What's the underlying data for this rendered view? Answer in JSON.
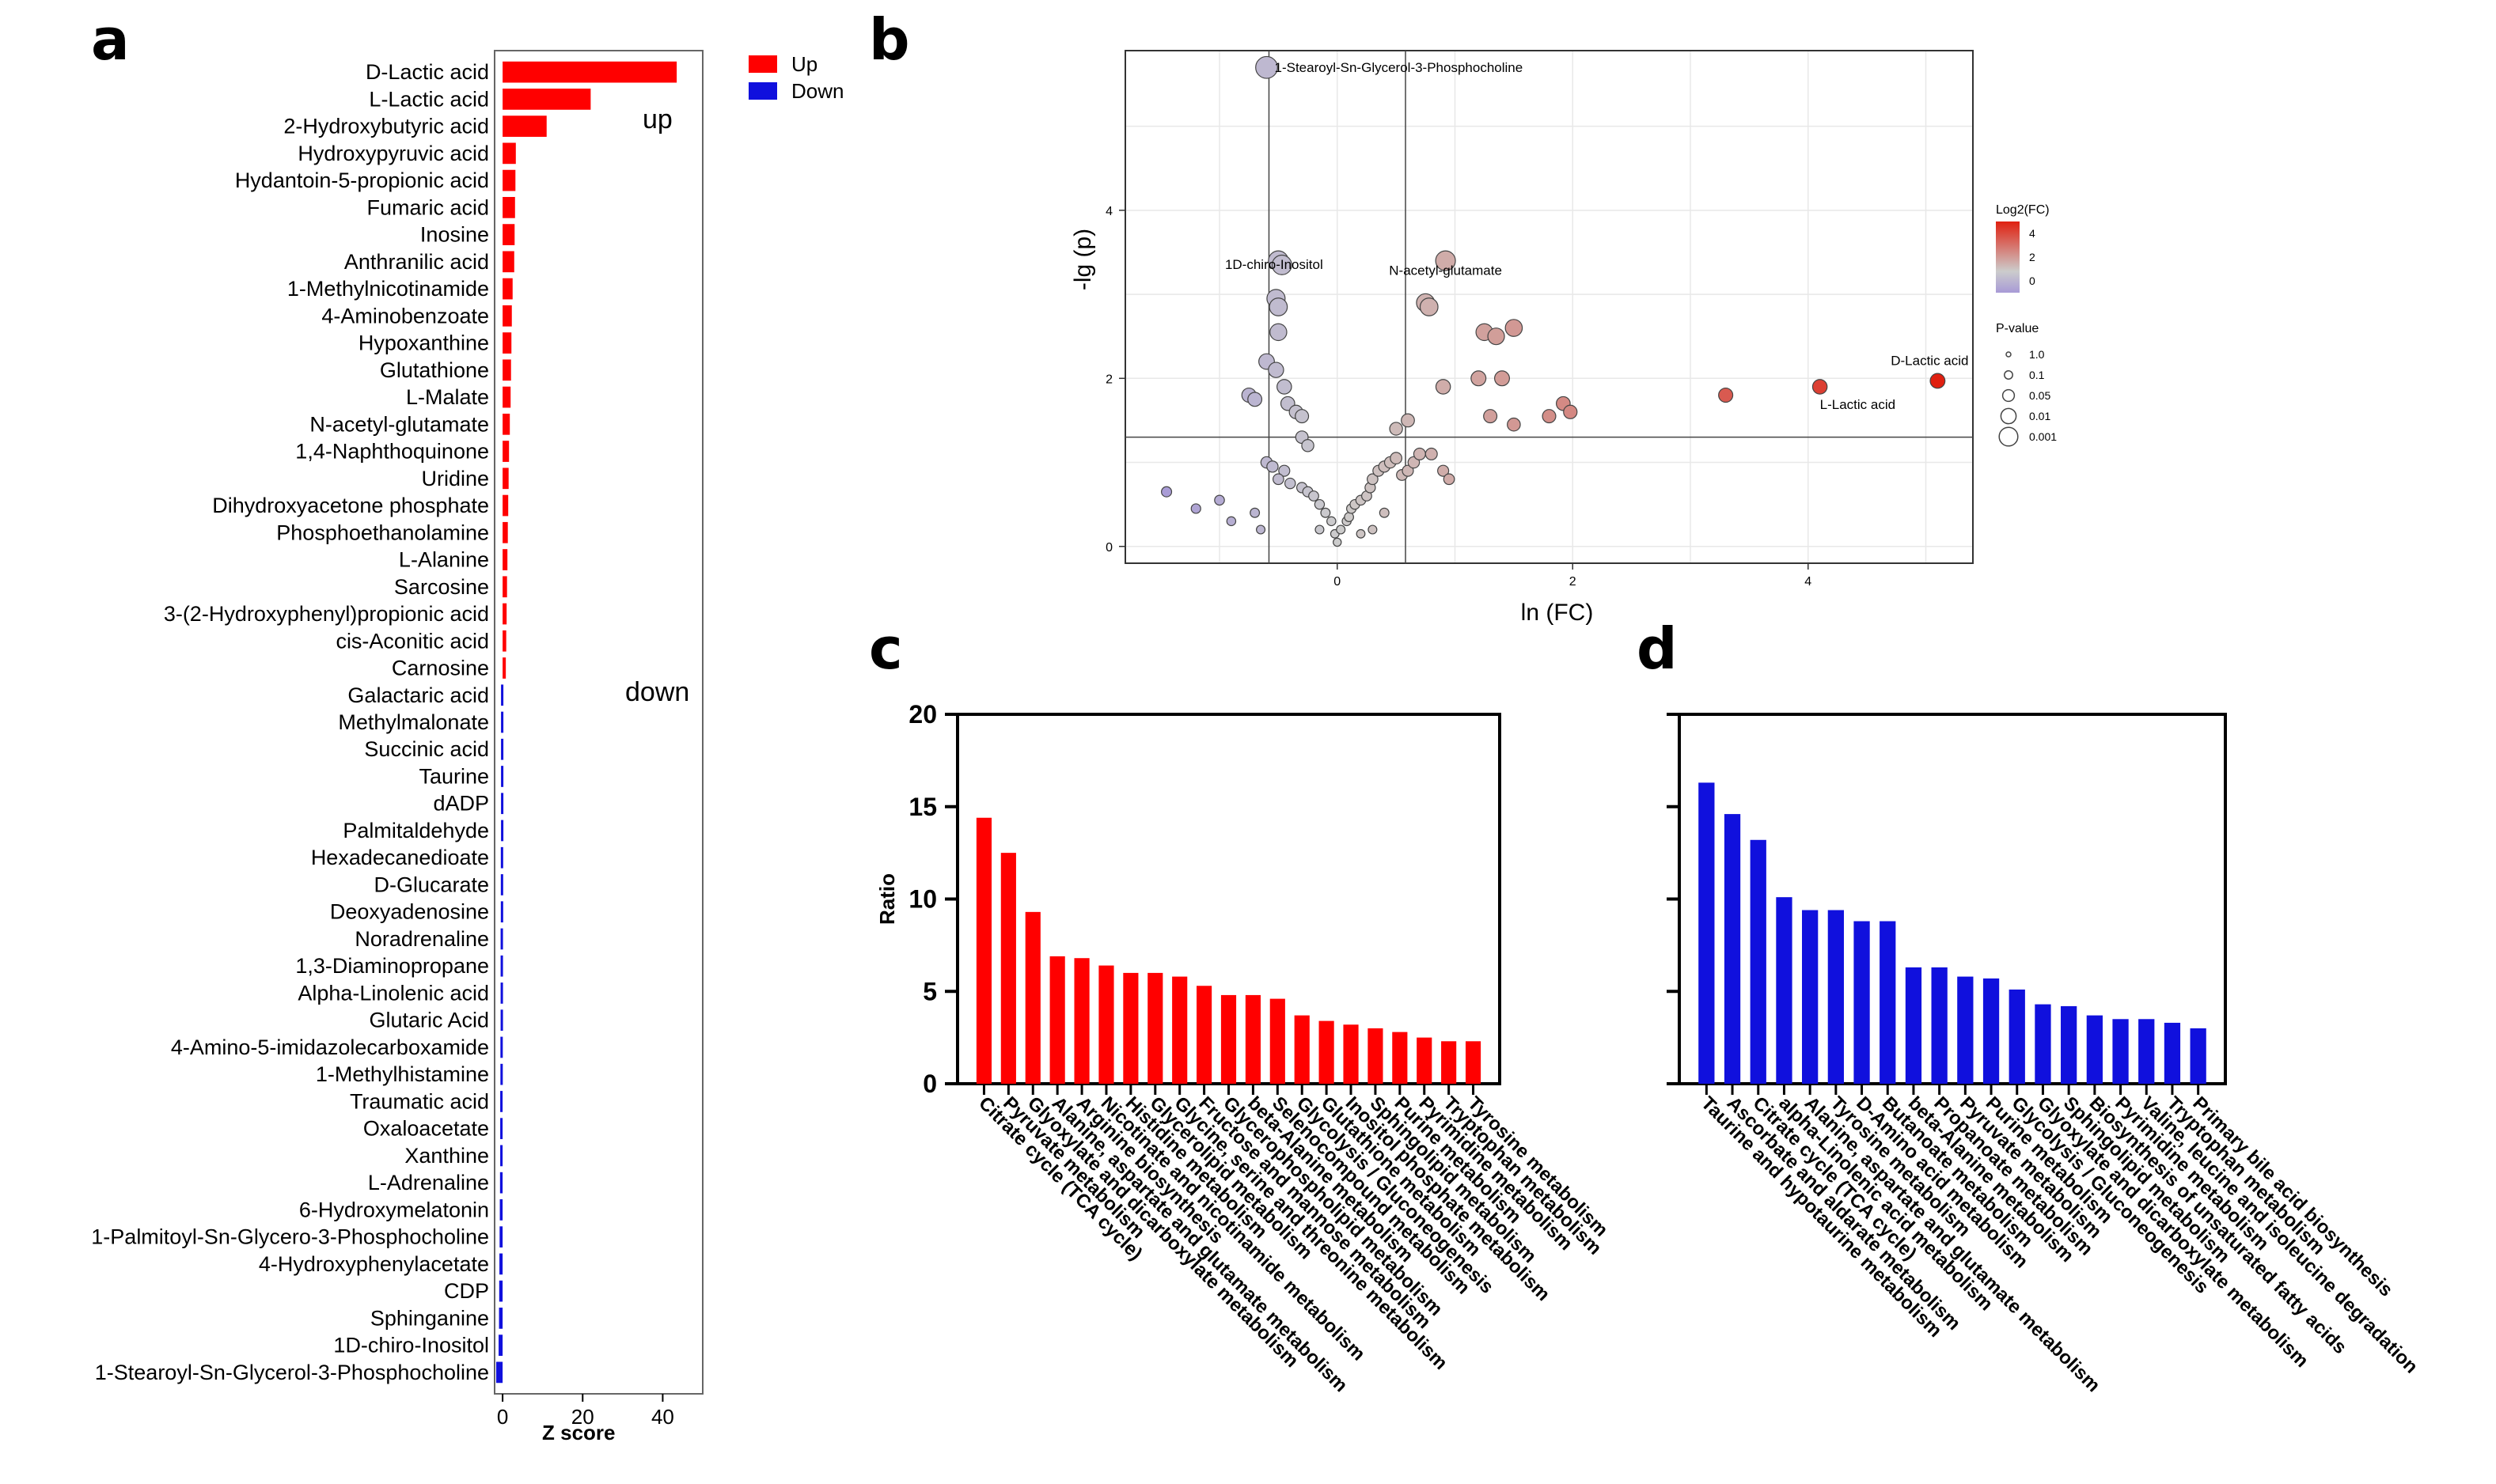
{
  "colors": {
    "up": "#ff0000",
    "down": "#1010dd",
    "volcano_low": "#a89ad6",
    "volcano_mid": "#cccccc",
    "volcano_high": "#e02010",
    "axis": "#000000",
    "grid": "#e8e8e8"
  },
  "chart_data": [
    {
      "panel": "a",
      "type": "bar",
      "orientation": "horizontal",
      "xlabel": "Z score",
      "xlim": [
        -2,
        50
      ],
      "xticks": [
        0,
        20,
        40
      ],
      "legend": [
        {
          "label": "Up",
          "color": "#ff0000"
        },
        {
          "label": "Down",
          "color": "#1010dd"
        }
      ],
      "legend_position": "top-right",
      "annotations": [
        "up",
        "down"
      ],
      "categories": [
        "D-Lactic acid",
        "L-Lactic acid",
        "2-Hydroxybutyric acid",
        "Hydroxypyruvic acid",
        "Hydantoin-5-propionic acid",
        "Fumaric acid",
        "Inosine",
        "Anthranilic acid",
        "1-Methylnicotinamide",
        "4-Aminobenzoate",
        "Hypoxanthine",
        "Glutathione",
        "L-Malate",
        "N-acetyl-glutamate",
        "1,4-Naphthoquinone",
        "Uridine",
        "Dihydroxyacetone phosphate",
        "Phosphoethanolamine",
        "L-Alanine",
        "Sarcosine",
        "3-(2-Hydroxyphenyl)propionic acid",
        "cis-Aconitic acid",
        "Carnosine",
        "Galactaric acid",
        "Methylmalonate",
        "Succinic acid",
        "Taurine",
        "dADP",
        "Palmitaldehyde",
        "Hexadecanedioate",
        "D-Glucarate",
        "Deoxyadenosine",
        "Noradrenaline",
        "1,3-Diaminopropane",
        "Alpha-Linolenic acid",
        "Glutaric Acid",
        "4-Amino-5-imidazolecarboxamide",
        "1-Methylhistamine",
        "Traumatic acid",
        "Oxaloacetate",
        "Xanthine",
        "L-Adrenaline",
        "6-Hydroxymelatonin",
        "1-Palmitoyl-Sn-Glycero-3-Phosphocholine",
        "4-Hydroxyphenylacetate",
        "CDP",
        "Sphinganine",
        "1D-chiro-Inositol",
        "1-Stearoyl-Sn-Glycerol-3-Phosphocholine"
      ],
      "values": [
        43.5,
        22.0,
        11.0,
        3.3,
        3.2,
        3.1,
        3.0,
        2.9,
        2.5,
        2.3,
        2.2,
        2.1,
        2.0,
        1.8,
        1.6,
        1.5,
        1.4,
        1.3,
        1.2,
        1.1,
        1.0,
        0.9,
        0.8,
        -0.4,
        -0.4,
        -0.4,
        -0.4,
        -0.4,
        -0.4,
        -0.45,
        -0.45,
        -0.45,
        -0.5,
        -0.5,
        -0.5,
        -0.5,
        -0.55,
        -0.55,
        -0.6,
        -0.6,
        -0.6,
        -0.65,
        -0.7,
        -0.75,
        -0.8,
        -0.85,
        -0.9,
        -1.0,
        -1.6
      ]
    },
    {
      "panel": "b",
      "type": "scatter",
      "xlabel": "ln (FC)",
      "ylabel": "-lg (p)",
      "xlim": [
        -1.8,
        5.4
      ],
      "ylim": [
        -0.2,
        5.9
      ],
      "xticks": [
        0,
        2,
        4
      ],
      "yticks": [
        0,
        2,
        4
      ],
      "thresholds": {
        "x": [
          -0.58,
          0.58
        ],
        "y": 1.3
      },
      "legend_color_title": "Log2(FC)",
      "legend_color_ticks": [
        "4",
        "2",
        "0"
      ],
      "legend_color_range": [
        -1,
        5
      ],
      "legend_position": "right",
      "legend_size_title": "P-value",
      "legend_size_labels": [
        "1.0",
        "0.1",
        "0.05",
        "0.01",
        "0.001"
      ],
      "labels": [
        {
          "text": "1-Stearoyl-Sn-Glycerol-3-Phosphocholine",
          "x": -0.6,
          "y": 5.7
        },
        {
          "text": "1D-chiro-Inositol",
          "x": -0.47,
          "y": 3.35
        },
        {
          "text": "N-acetyl-glutamate",
          "x": 0.92,
          "y": 3.4
        },
        {
          "text": "D-Lactic acid",
          "x": 5.1,
          "y": 1.97
        },
        {
          "text": "L-Lactic acid",
          "x": 4.1,
          "y": 1.9
        }
      ],
      "points": [
        [
          -0.6,
          5.7
        ],
        [
          -0.5,
          3.4
        ],
        [
          -0.47,
          3.35
        ],
        [
          -0.52,
          2.95
        ],
        [
          -0.5,
          2.85
        ],
        [
          -0.5,
          2.55
        ],
        [
          -0.6,
          2.2
        ],
        [
          -0.52,
          2.1
        ],
        [
          -0.75,
          1.8
        ],
        [
          -0.7,
          1.75
        ],
        [
          -0.45,
          1.9
        ],
        [
          -0.42,
          1.7
        ],
        [
          -0.35,
          1.6
        ],
        [
          -0.3,
          1.55
        ],
        [
          -0.3,
          1.3
        ],
        [
          -0.25,
          1.2
        ],
        [
          -0.6,
          1.0
        ],
        [
          -0.55,
          0.95
        ],
        [
          -0.45,
          0.9
        ],
        [
          -0.5,
          0.8
        ],
        [
          -0.4,
          0.75
        ],
        [
          -0.3,
          0.7
        ],
        [
          -0.25,
          0.65
        ],
        [
          -0.2,
          0.6
        ],
        [
          -0.15,
          0.5
        ],
        [
          -0.1,
          0.4
        ],
        [
          -0.05,
          0.3
        ],
        [
          -0.02,
          0.15
        ],
        [
          0.0,
          0.05
        ],
        [
          0.03,
          0.2
        ],
        [
          -1.45,
          0.65
        ],
        [
          -1.2,
          0.45
        ],
        [
          -1.0,
          0.55
        ],
        [
          -0.9,
          0.3
        ],
        [
          -0.7,
          0.4
        ],
        [
          -0.65,
          0.2
        ],
        [
          0.08,
          0.3
        ],
        [
          0.1,
          0.35
        ],
        [
          0.12,
          0.45
        ],
        [
          0.15,
          0.5
        ],
        [
          0.2,
          0.55
        ],
        [
          0.25,
          0.6
        ],
        [
          0.28,
          0.7
        ],
        [
          0.3,
          0.8
        ],
        [
          0.35,
          0.9
        ],
        [
          0.4,
          0.95
        ],
        [
          0.45,
          1.0
        ],
        [
          0.5,
          1.05
        ],
        [
          0.55,
          0.85
        ],
        [
          0.6,
          0.9
        ],
        [
          0.65,
          1.0
        ],
        [
          0.7,
          1.1
        ],
        [
          0.8,
          1.1
        ],
        [
          0.9,
          0.9
        ],
        [
          0.95,
          0.8
        ],
        [
          0.4,
          0.4
        ],
        [
          0.5,
          1.4
        ],
        [
          0.6,
          1.5
        ],
        [
          0.9,
          1.9
        ],
        [
          0.75,
          2.9
        ],
        [
          0.78,
          2.85
        ],
        [
          0.92,
          3.4
        ],
        [
          1.25,
          2.55
        ],
        [
          1.35,
          2.5
        ],
        [
          1.5,
          2.6
        ],
        [
          1.2,
          2.0
        ],
        [
          1.4,
          2.0
        ],
        [
          1.3,
          1.55
        ],
        [
          1.5,
          1.45
        ],
        [
          1.8,
          1.55
        ],
        [
          1.92,
          1.7
        ],
        [
          1.98,
          1.6
        ],
        [
          3.3,
          1.8
        ],
        [
          4.1,
          1.9
        ],
        [
          5.1,
          1.97
        ],
        [
          0.3,
          0.2
        ],
        [
          0.2,
          0.15
        ],
        [
          -0.15,
          0.2
        ]
      ]
    },
    {
      "panel": "c",
      "type": "bar",
      "ylabel": "Ratio",
      "ylim": [
        0,
        20
      ],
      "yticks": [
        0,
        5,
        10,
        15,
        20
      ],
      "categories": [
        "Citrate cycle (TCA cycle)",
        "Pyruvate metabolism",
        "Glyoxylate and dicarboxylate metabolism",
        "Alanine, aspartate and glutamate metabolism",
        "Arginine biosynthesis",
        "Nicotinate and nicotinamide metabolism",
        "Histidine metabolism",
        "Glycerolipid metabolism",
        "Glycine, serine and threonine metabolism",
        "Fructose and mannose metabolism",
        "Glycerophospholipid metabolism",
        "beta-Alanine metabolism",
        "Selenocompound metabolism",
        "Glycolysis / Gluconeogenesis",
        "Glutathione metabolism",
        "Inositol phosphate metabolism",
        "Sphingolipid metabolism",
        "Purine metabolism",
        "Pyrimidine metabolism",
        "Tryptophan metabolism",
        "Tyrosine metabolism"
      ],
      "values": [
        14.4,
        12.5,
        9.3,
        6.9,
        6.8,
        6.4,
        6.0,
        6.0,
        5.8,
        5.3,
        4.8,
        4.8,
        4.6,
        3.7,
        3.4,
        3.2,
        3.0,
        2.8,
        2.5,
        2.3,
        2.3
      ]
    },
    {
      "panel": "d",
      "type": "bar",
      "ylim": [
        0,
        20
      ],
      "yticks": [
        0,
        5,
        10,
        15,
        20
      ],
      "categories": [
        "Taurine and hypotaurine metabolism",
        "Ascorbate and aldarate metabolism",
        "Citrate cycle (TCA cycle)",
        "alpha-Linolenic acid metabolism",
        "Alanine, aspartate and glutamate metabolism",
        "Tyrosine metabolism",
        "D-Amino acid metabolism",
        "Butanoate metabolism",
        "beta-Alanine metabolism",
        "Propanoate metabolism",
        "Pyruvate metabolism",
        "Purine metabolism",
        "Glycolysis / Gluconeogenesis",
        "Glyoxylate and dicarboxylate metabolism",
        "Sphingolipid metabolism",
        "Biosynthesis of unsaturated fatty acids",
        "Pyrimidine metabolism",
        "Valine, leucine and isoleucine degradation",
        "Tryptophan metabolism",
        "Primary bile acid biosynthesis"
      ],
      "values": [
        16.3,
        14.6,
        13.2,
        10.1,
        9.4,
        9.4,
        8.8,
        8.8,
        6.3,
        6.3,
        5.8,
        5.7,
        5.1,
        4.3,
        4.2,
        3.7,
        3.5,
        3.5,
        3.3,
        3.0
      ]
    }
  ],
  "panels": {
    "a": {
      "letter": "a"
    },
    "b": {
      "letter": "b"
    },
    "c": {
      "letter": "c"
    },
    "d": {
      "letter": "d"
    }
  }
}
